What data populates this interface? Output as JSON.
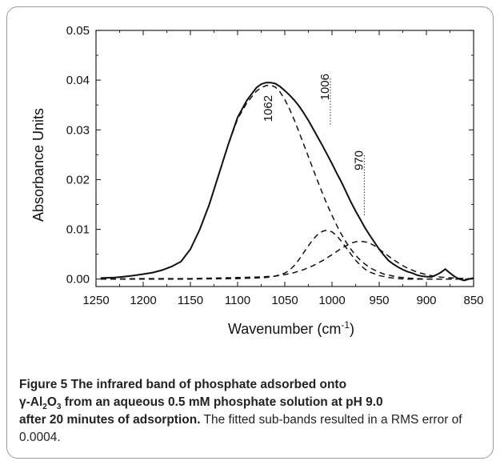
{
  "chart_data": {
    "type": "line",
    "xlabel": "Wavenumber (cm⁻¹)",
    "xlabel_base": "Wavenumber (cm",
    "xlabel_sup": "-1",
    "xlabel_close": ")",
    "ylabel": "Absorbance Units",
    "xlim": [
      1250,
      850
    ],
    "ylim": [
      -0.0015,
      0.05
    ],
    "x_reversed": true,
    "x_ticks": [
      1250,
      1200,
      1150,
      1100,
      1050,
      1000,
      950,
      900,
      850
    ],
    "x_tick_labels": [
      "1250",
      "1200",
      "1150",
      "1100",
      "1050",
      "1000",
      "950",
      "900",
      "850"
    ],
    "y_ticks": [
      0.0,
      0.01,
      0.02,
      0.03,
      0.04,
      0.05
    ],
    "y_tick_labels": [
      "0.00",
      "0.01",
      "0.02",
      "0.03",
      "0.04",
      "0.05"
    ],
    "grid": false,
    "series": [
      {
        "style": "solid",
        "x": [
          1245,
          1230,
          1220,
          1210,
          1200,
          1190,
          1180,
          1170,
          1160,
          1150,
          1140,
          1130,
          1120,
          1110,
          1100,
          1090,
          1080,
          1075,
          1070,
          1065,
          1060,
          1055,
          1050,
          1045,
          1040,
          1035,
          1030,
          1025,
          1020,
          1015,
          1010,
          1005,
          1000,
          995,
          990,
          985,
          980,
          975,
          970,
          965,
          960,
          955,
          950,
          945,
          940,
          935,
          930,
          925,
          920,
          915,
          910,
          905,
          900,
          895,
          890,
          885,
          880,
          875,
          870,
          865,
          860,
          855,
          850
        ],
        "y": [
          0.0002,
          0.0003,
          0.0005,
          0.0007,
          0.001,
          0.0013,
          0.0018,
          0.0025,
          0.0035,
          0.006,
          0.01,
          0.015,
          0.021,
          0.027,
          0.0325,
          0.036,
          0.0385,
          0.0392,
          0.0395,
          0.0395,
          0.0393,
          0.0387,
          0.0379,
          0.037,
          0.036,
          0.0348,
          0.0334,
          0.0319,
          0.0302,
          0.0285,
          0.0268,
          0.025,
          0.0232,
          0.0213,
          0.0195,
          0.0175,
          0.0155,
          0.0137,
          0.012,
          0.0103,
          0.0088,
          0.0074,
          0.006,
          0.0048,
          0.0037,
          0.003,
          0.0024,
          0.0019,
          0.0015,
          0.0012,
          0.0008,
          0.0006,
          0.0005,
          0.0004,
          0.0008,
          0.0013,
          0.002,
          0.0012,
          0.0005,
          0.0,
          -0.0003,
          0.0,
          0.0002
        ]
      },
      {
        "style": "dashed",
        "x": [
          1245,
          1230,
          1220,
          1210,
          1200,
          1190,
          1180,
          1170,
          1160,
          1150,
          1140,
          1130,
          1120,
          1110,
          1100,
          1090,
          1080,
          1075,
          1070,
          1065,
          1060,
          1055,
          1050,
          1045,
          1040,
          1035,
          1030,
          1025,
          1020,
          1015,
          1010,
          1005,
          1000,
          995,
          990,
          985,
          980,
          975,
          970,
          965,
          960,
          955,
          950,
          945,
          940,
          935,
          930,
          920,
          910,
          900,
          890,
          880,
          870,
          860,
          850
        ],
        "y": [
          0.0002,
          0.0003,
          0.0005,
          0.0007,
          0.001,
          0.0013,
          0.0018,
          0.0025,
          0.0035,
          0.006,
          0.01,
          0.015,
          0.021,
          0.027,
          0.0322,
          0.0355,
          0.0378,
          0.0385,
          0.0389,
          0.039,
          0.0386,
          0.0376,
          0.0361,
          0.0342,
          0.032,
          0.0296,
          0.0271,
          0.0246,
          0.0221,
          0.0196,
          0.0172,
          0.0149,
          0.0128,
          0.0108,
          0.009,
          0.0074,
          0.006,
          0.0048,
          0.0038,
          0.003,
          0.0023,
          0.0018,
          0.0014,
          0.001,
          0.0008,
          0.0006,
          0.0004,
          0.0002,
          0.0001,
          0.0,
          0.0,
          0.0,
          0.0,
          0.0,
          0.0
        ]
      },
      {
        "style": "dashed",
        "x": [
          1245,
          1150,
          1100,
          1070,
          1060,
          1050,
          1045,
          1040,
          1035,
          1030,
          1025,
          1020,
          1015,
          1010,
          1006,
          1000,
          995,
          990,
          985,
          980,
          975,
          970,
          965,
          960,
          950,
          940,
          930,
          920,
          900,
          880,
          860,
          850
        ],
        "y": [
          0.0,
          0.0,
          0.0001,
          0.0003,
          0.0006,
          0.0012,
          0.0018,
          0.0027,
          0.0039,
          0.0053,
          0.0067,
          0.008,
          0.009,
          0.0096,
          0.0098,
          0.0095,
          0.0087,
          0.0076,
          0.0063,
          0.005,
          0.0038,
          0.0028,
          0.002,
          0.0014,
          0.0007,
          0.0003,
          0.0001,
          0.0,
          0.0,
          0.0,
          0.0,
          0.0
        ]
      },
      {
        "style": "dashed",
        "x": [
          1245,
          1200,
          1150,
          1100,
          1080,
          1060,
          1050,
          1040,
          1030,
          1020,
          1010,
          1000,
          990,
          980,
          975,
          970,
          965,
          960,
          955,
          950,
          945,
          940,
          935,
          930,
          925,
          920,
          910,
          900,
          890,
          880,
          870,
          860,
          850
        ],
        "y": [
          0.0,
          0.0001,
          0.0001,
          0.0003,
          0.0004,
          0.0006,
          0.0009,
          0.0013,
          0.0019,
          0.0027,
          0.0037,
          0.0049,
          0.0062,
          0.0072,
          0.0075,
          0.0076,
          0.0075,
          0.0072,
          0.0067,
          0.006,
          0.0053,
          0.0046,
          0.0039,
          0.0033,
          0.0027,
          0.0022,
          0.0014,
          0.0009,
          0.0005,
          0.0003,
          0.0002,
          0.0001,
          0.0001
        ]
      }
    ],
    "annotations": [
      {
        "text": "1062",
        "x": 1062,
        "y": 0.0373
      },
      {
        "text": "1006",
        "x": 1006,
        "y": 0.031
      },
      {
        "text": "970",
        "x": 970,
        "y": 0.0125
      }
    ]
  },
  "caption": {
    "bold_prefix": "Figure 5 The infrared band of phosphate adsorbed onto",
    "bold_line2_gamma": "γ-Al",
    "sub2": "2",
    "o": "O",
    "sub3": "3",
    "bold_line2_rest": " from an aqueous 0.5 mM phosphate solution at pH 9.0",
    "bold_line3": "after 20 minutes of adsorption.",
    "normal": " The fitted sub-bands resulted in a RMS error of 0.0004."
  }
}
